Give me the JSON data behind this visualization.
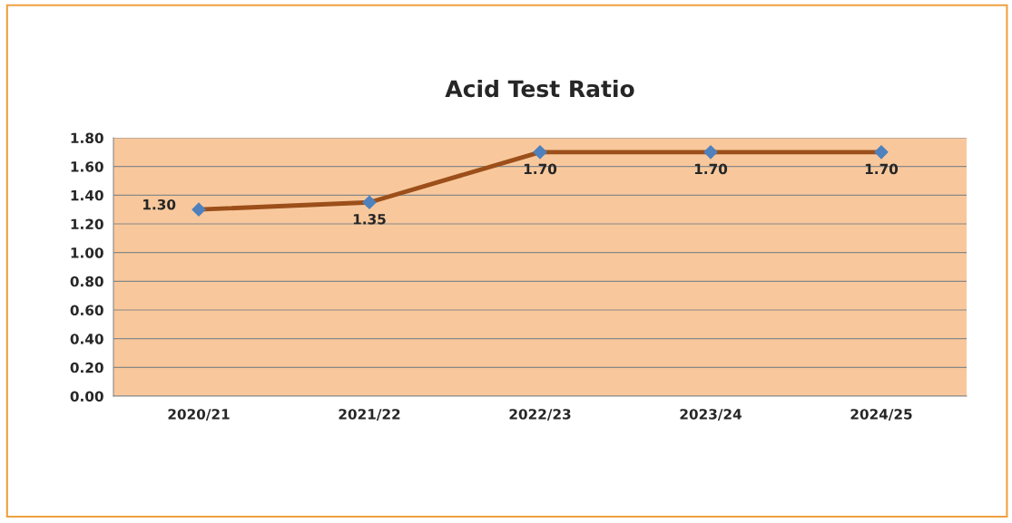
{
  "chart_data": {
    "type": "line",
    "title": "Acid Test Ratio",
    "categories": [
      "2020/21",
      "2021/22",
      "2022/23",
      "2023/24",
      "2024/25"
    ],
    "series": [
      {
        "color": "#9c4f1a",
        "values": [
          1.3,
          1.35,
          1.7,
          1.7,
          1.7
        ],
        "value_labels": [
          "1.30",
          "1.35",
          "1.70",
          "1.70",
          "1.70"
        ]
      }
    ],
    "ylim": [
      0,
      1.8
    ],
    "yticks": [
      {
        "value": 0,
        "label": "0.00"
      },
      {
        "value": 0.2,
        "label": "0.20"
      },
      {
        "value": 0.4,
        "label": "0.40"
      },
      {
        "value": 0.6,
        "label": "0.60"
      },
      {
        "value": 0.8,
        "label": "0.80"
      },
      {
        "value": 1.0,
        "label": "1.00"
      },
      {
        "value": 1.2,
        "label": "1.20"
      },
      {
        "value": 1.4,
        "label": "1.40"
      },
      {
        "value": 1.6,
        "label": "1.60"
      },
      {
        "value": 1.8,
        "label": "1.80"
      }
    ],
    "grid": "y",
    "marker": "diamond",
    "line_style": "solid"
  }
}
